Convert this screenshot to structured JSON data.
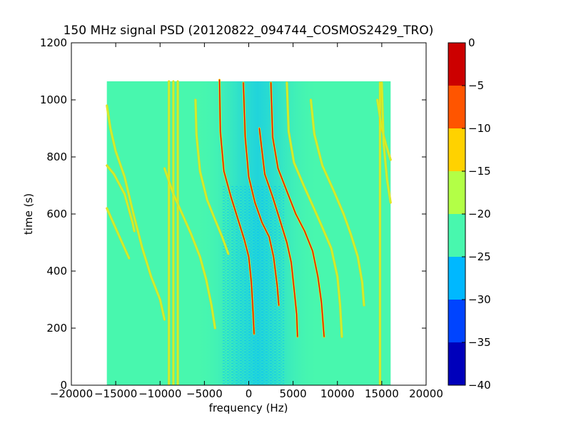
{
  "chart_data": {
    "type": "heatmap",
    "title": "150 MHz signal PSD (20120822_094744_COSMOS2429_TRO)",
    "xlabel": "frequency (Hz)",
    "ylabel": "time (s)",
    "xlim": [
      -20000,
      20000
    ],
    "ylim": [
      0,
      1200
    ],
    "x_ticks": [
      -20000,
      -15000,
      -10000,
      -5000,
      0,
      5000,
      10000,
      15000,
      20000
    ],
    "y_ticks": [
      0,
      200,
      400,
      600,
      800,
      1000,
      1200
    ],
    "data_extent": {
      "x": [
        -16000,
        16000
      ],
      "y": [
        0,
        1065
      ]
    },
    "background_level": -22.5,
    "grid": false,
    "colorbar": {
      "placement": "right",
      "vmin": -40,
      "vmax": 0,
      "levels": [
        -40,
        -35,
        -30,
        -25,
        -20,
        -15,
        -10,
        -5,
        0
      ],
      "tick_labels": [
        "0",
        "−5",
        "−10",
        "−15",
        "−20",
        "−25",
        "−30",
        "−35",
        "−40"
      ],
      "tick_values": [
        0,
        -5,
        -10,
        -15,
        -20,
        -25,
        -30,
        -35,
        -40
      ],
      "colors": [
        "#0000bb",
        "#0044ff",
        "#00b8ff",
        "#48f7ae",
        "#b3ff46",
        "#ffd200",
        "#ff5500",
        "#cc0000"
      ]
    },
    "traces": [
      {
        "points": [
          [
            -16000,
            620
          ],
          [
            -13500,
            445
          ]
        ],
        "level": -17
      },
      {
        "points": [
          [
            -16000,
            770
          ],
          [
            -15200,
            740
          ],
          [
            -14000,
            670
          ],
          [
            -13100,
            570
          ],
          [
            -12900,
            540
          ]
        ],
        "level": -17
      },
      {
        "points": [
          [
            -16000,
            980
          ],
          [
            -15600,
            900
          ],
          [
            -15000,
            820
          ],
          [
            -14000,
            730
          ],
          [
            -13000,
            600
          ],
          [
            -12000,
            480
          ],
          [
            -11000,
            380
          ],
          [
            -10000,
            300
          ],
          [
            -9500,
            230
          ]
        ],
        "level": -17
      },
      {
        "points": [
          [
            -9000,
            1065
          ],
          [
            -9000,
            0
          ]
        ],
        "level": -17
      },
      {
        "points": [
          [
            -8500,
            1065
          ],
          [
            -8500,
            0
          ]
        ],
        "level": -17
      },
      {
        "points": [
          [
            -8000,
            1065
          ],
          [
            -8000,
            0
          ]
        ],
        "level": -17
      },
      {
        "points": [
          [
            -9500,
            760
          ],
          [
            -8500,
            670
          ],
          [
            -7500,
            600
          ],
          [
            -6500,
            530
          ],
          [
            -5500,
            450
          ],
          [
            -4800,
            370
          ],
          [
            -4200,
            280
          ],
          [
            -3800,
            200
          ]
        ],
        "level": -17
      },
      {
        "points": [
          [
            -6000,
            1000
          ],
          [
            -5900,
            880
          ],
          [
            -5500,
            750
          ],
          [
            -4700,
            650
          ],
          [
            -3800,
            580
          ],
          [
            -3000,
            520
          ],
          [
            -2300,
            460
          ]
        ],
        "level": -17
      },
      {
        "points": [
          [
            -3300,
            1070
          ],
          [
            -3200,
            890
          ],
          [
            -2800,
            750
          ],
          [
            -2000,
            660
          ],
          [
            -1200,
            580
          ],
          [
            -500,
            510
          ],
          [
            0,
            450
          ],
          [
            300,
            360
          ],
          [
            500,
            250
          ],
          [
            600,
            180
          ]
        ],
        "level": -5
      },
      {
        "points": [
          [
            -600,
            1060
          ],
          [
            -400,
            870
          ],
          [
            0,
            730
          ],
          [
            700,
            640
          ],
          [
            1500,
            570
          ],
          [
            2300,
            520
          ],
          [
            2800,
            450
          ],
          [
            3200,
            350
          ],
          [
            3400,
            280
          ]
        ],
        "level": -5
      },
      {
        "points": [
          [
            1200,
            900
          ],
          [
            1800,
            740
          ],
          [
            2700,
            660
          ],
          [
            3500,
            580
          ],
          [
            4300,
            500
          ],
          [
            4800,
            430
          ],
          [
            5100,
            340
          ],
          [
            5400,
            250
          ],
          [
            5500,
            170
          ]
        ],
        "level": -5
      },
      {
        "points": [
          [
            2500,
            1060
          ],
          [
            2700,
            870
          ],
          [
            3300,
            760
          ],
          [
            4300,
            680
          ],
          [
            5300,
            600
          ],
          [
            6300,
            540
          ],
          [
            7200,
            470
          ],
          [
            7800,
            380
          ],
          [
            8200,
            290
          ],
          [
            8500,
            170
          ]
        ],
        "level": -5
      },
      {
        "points": [
          [
            4300,
            1060
          ],
          [
            4500,
            890
          ],
          [
            5100,
            780
          ],
          [
            6200,
            700
          ],
          [
            7200,
            630
          ],
          [
            8200,
            560
          ],
          [
            9300,
            480
          ],
          [
            10000,
            380
          ],
          [
            10300,
            280
          ],
          [
            10500,
            170
          ]
        ],
        "level": -17
      },
      {
        "points": [
          [
            7000,
            1000
          ],
          [
            7400,
            880
          ],
          [
            8300,
            770
          ],
          [
            9600,
            680
          ],
          [
            10700,
            600
          ],
          [
            11500,
            530
          ],
          [
            12300,
            450
          ],
          [
            12800,
            360
          ],
          [
            13000,
            280
          ]
        ],
        "level": -17
      },
      {
        "points": [
          [
            14800,
            1060
          ],
          [
            14800,
            0
          ]
        ],
        "level": -17
      },
      {
        "points": [
          [
            14500,
            1000
          ],
          [
            15000,
            900
          ],
          [
            15500,
            840
          ],
          [
            16000,
            790
          ]
        ],
        "level": -17
      },
      {
        "points": [
          [
            15000,
            1060
          ],
          [
            15200,
            850
          ],
          [
            15600,
            720
          ],
          [
            16000,
            640
          ]
        ],
        "level": -17
      }
    ]
  }
}
